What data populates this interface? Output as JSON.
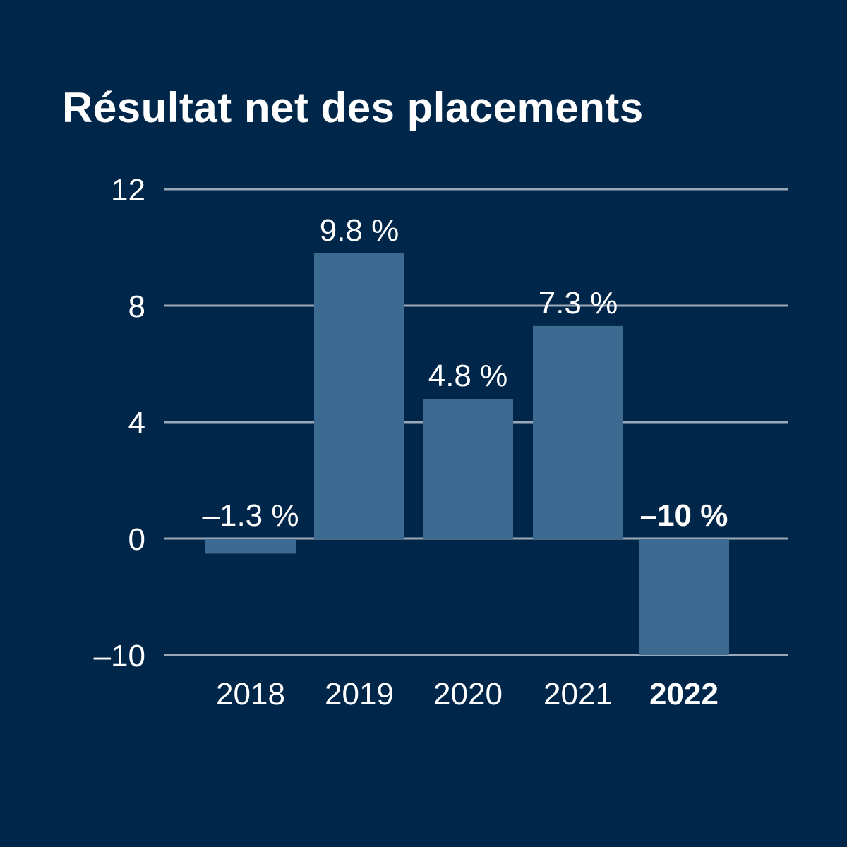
{
  "chart_data": {
    "type": "bar",
    "title": "Résultat net des placements",
    "categories": [
      "2018",
      "2019",
      "2020",
      "2021",
      "2022"
    ],
    "values": [
      -1.3,
      9.8,
      4.8,
      7.3,
      -10
    ],
    "data_labels": [
      "–1.3 %",
      "9.8 %",
      "4.8 %",
      "7.3 %",
      "–10 %"
    ],
    "highlight_category": "2022",
    "y_ticks": [
      12,
      8,
      4,
      0,
      -10
    ],
    "y_tick_labels": [
      "12",
      "8",
      "4",
      "0",
      "–10"
    ],
    "ylim": [
      -10,
      12
    ],
    "grid": true,
    "xlabel": "",
    "ylabel": "",
    "colors": {
      "background": "#002649",
      "bar": "#3c6a91",
      "grid": "#9aa9b8",
      "text": "#ffffff"
    }
  }
}
